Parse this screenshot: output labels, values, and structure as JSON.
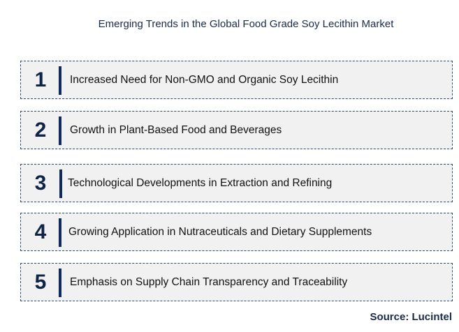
{
  "title": "Emerging Trends in the Global Food Grade Soy Lecithin Market",
  "trends": [
    {
      "number": "1",
      "text": "Increased Need for Non-GMO and Organic Soy Lecithin"
    },
    {
      "number": "2",
      "text": "Growth in Plant-Based Food and Beverages"
    },
    {
      "number": "3",
      "text": "Technological Developments in Extraction and Refining"
    },
    {
      "number": "4",
      "text": "Growing Application in Nutraceuticals and Dietary Supplements"
    },
    {
      "number": "5",
      "text": "Emphasis on Supply Chain Transparency and Traceability"
    }
  ],
  "source": "Source: Lucintel",
  "colors": {
    "accent": "#0f2a5c",
    "box_background": "#f1f1f1",
    "box_border": "#2e4a7a"
  }
}
